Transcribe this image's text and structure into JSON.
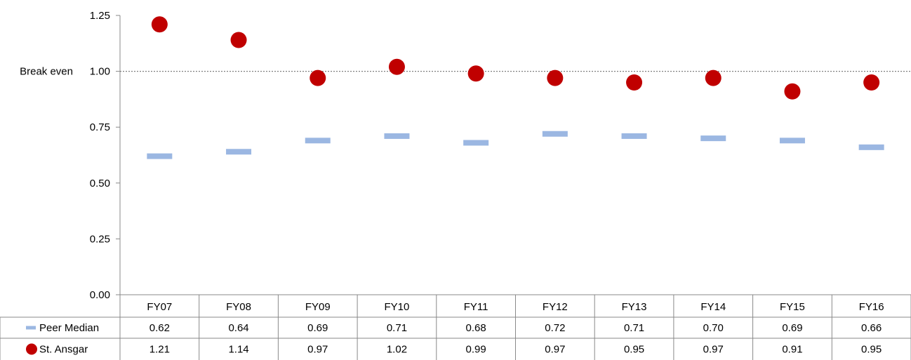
{
  "chart_data": {
    "type": "scatter",
    "categories": [
      "FY07",
      "FY08",
      "FY09",
      "FY10",
      "FY11",
      "FY12",
      "FY13",
      "FY14",
      "FY15",
      "FY16"
    ],
    "series": [
      {
        "name": "Peer Median",
        "marker": "dash",
        "color": "#9BB7E2",
        "values": [
          0.62,
          0.64,
          0.69,
          0.71,
          0.68,
          0.72,
          0.71,
          0.7,
          0.69,
          0.66
        ],
        "labels": [
          "0.62",
          "0.64",
          "0.69",
          "0.71",
          "0.68",
          "0.72",
          "0.71",
          "0.70",
          "0.69",
          "0.66"
        ]
      },
      {
        "name": "St. Ansgar",
        "marker": "circle",
        "color": "#C00000",
        "values": [
          1.21,
          1.14,
          0.97,
          1.02,
          0.99,
          0.97,
          0.95,
          0.97,
          0.91,
          0.95
        ],
        "labels": [
          "1.21",
          "1.14",
          "0.97",
          "1.02",
          "0.99",
          "0.97",
          "0.95",
          "0.97",
          "0.91",
          "0.95"
        ]
      }
    ],
    "ylim": [
      0,
      1.25
    ],
    "yticks": [
      0,
      0.25,
      0.5,
      0.75,
      1.0,
      1.25
    ],
    "ytick_labels": [
      "0.00",
      "0.25",
      "0.50",
      "0.75",
      "1.00",
      "1.25"
    ],
    "reference_line": {
      "value": 1.0,
      "label": "Break even",
      "color": "#7F7F7F"
    },
    "grid": false,
    "legend": "data-table"
  }
}
